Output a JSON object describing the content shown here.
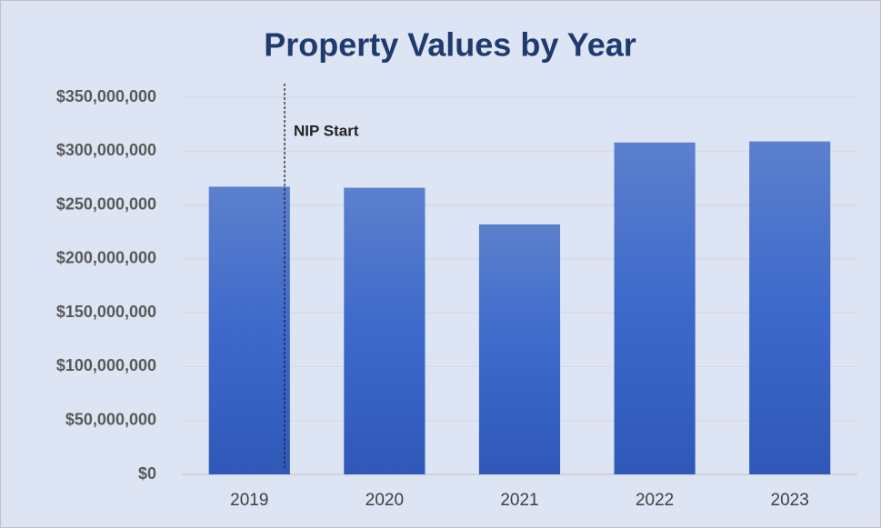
{
  "chart_data": {
    "type": "bar",
    "title": "Property Values by Year",
    "categories": [
      "2019",
      "2020",
      "2021",
      "2022",
      "2023"
    ],
    "values": [
      267000000,
      266000000,
      232000000,
      308000000,
      309000000
    ],
    "color": "#3b65c4",
    "ylim": [
      0,
      350000000
    ],
    "yticks": [
      {
        "value": 0,
        "label": "$0"
      },
      {
        "value": 50000000,
        "label": "$50,000,000"
      },
      {
        "value": 100000000,
        "label": "$100,000,000"
      },
      {
        "value": 150000000,
        "label": "$150,000,000"
      },
      {
        "value": 200000000,
        "label": "$200,000,000"
      },
      {
        "value": 250000000,
        "label": "$250,000,000"
      },
      {
        "value": 300000000,
        "label": "$300,000,000"
      },
      {
        "value": 350000000,
        "label": "$350,000,000"
      }
    ],
    "grid": true,
    "annotation": "NIP Start"
  }
}
